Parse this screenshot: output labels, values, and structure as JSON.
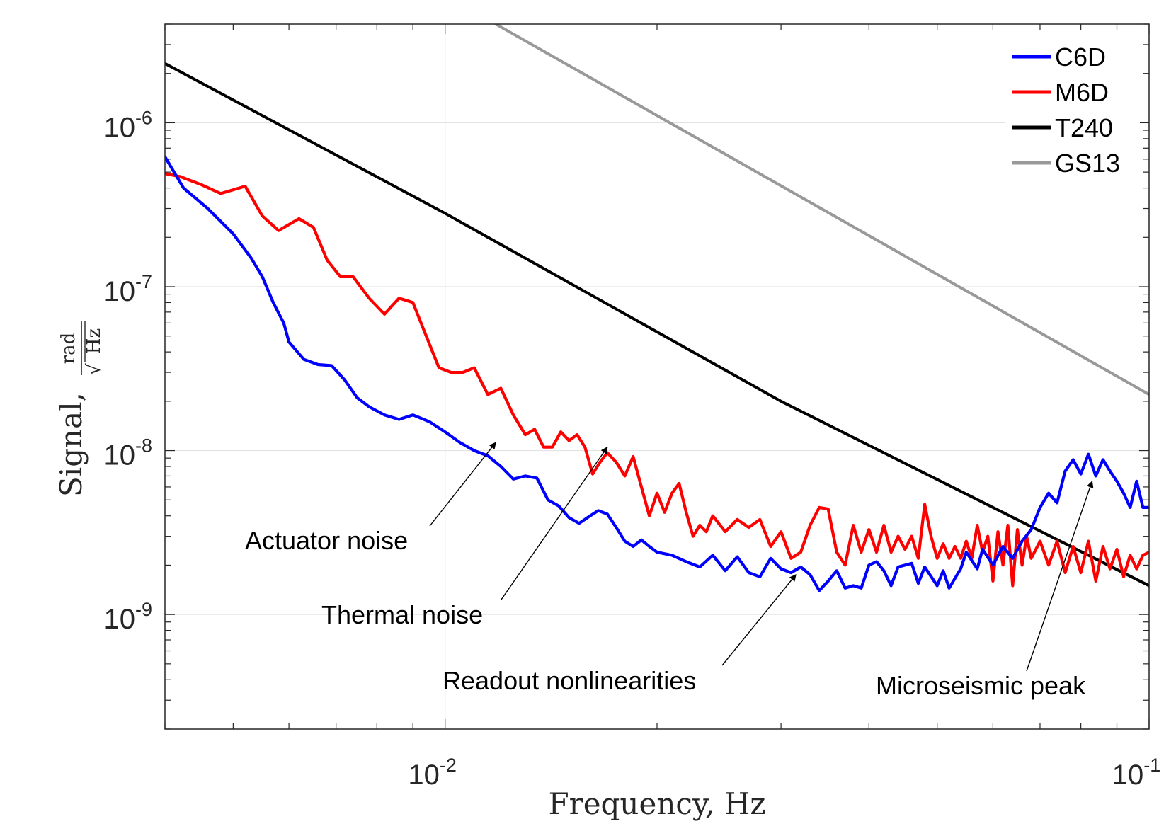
{
  "chart_data": {
    "type": "line",
    "scale": {
      "x": "log",
      "y": "log"
    },
    "xlim": [
      0.004,
      0.1
    ],
    "ylim": [
      2e-10,
      4e-06
    ],
    "x_ticks": [
      {
        "value": 0.01,
        "base": "10",
        "exp": "-2"
      },
      {
        "value": 0.1,
        "base": "10",
        "exp": "-1"
      }
    ],
    "y_ticks": [
      {
        "value": 1e-09,
        "base": "10",
        "exp": "-9"
      },
      {
        "value": 1e-08,
        "base": "10",
        "exp": "-8"
      },
      {
        "value": 1e-07,
        "base": "10",
        "exp": "-7"
      },
      {
        "value": 1e-06,
        "base": "10",
        "exp": "-6"
      }
    ],
    "xlabel": "Frequency, Hz",
    "ylabel": "Signal,",
    "yunit": {
      "numerator": "rad",
      "denominator": "Hz",
      "root": "√"
    },
    "grid": true,
    "legend_position": "top-right",
    "series": [
      {
        "name": "C6D",
        "color": "#0000ff",
        "points": [
          [
            0.004,
            6.2e-07
          ],
          [
            0.00425,
            4e-07
          ],
          [
            0.0046,
            3e-07
          ],
          [
            0.005,
            2.1e-07
          ],
          [
            0.0053,
            1.5e-07
          ],
          [
            0.0055,
            1.15e-07
          ],
          [
            0.0057,
            8e-08
          ],
          [
            0.0059,
            6e-08
          ],
          [
            0.006,
            4.6e-08
          ],
          [
            0.0063,
            3.6e-08
          ],
          [
            0.0066,
            3.35e-08
          ],
          [
            0.0069,
            3.3e-08
          ],
          [
            0.0072,
            2.7e-08
          ],
          [
            0.0075,
            2.1e-08
          ],
          [
            0.0078,
            1.85e-08
          ],
          [
            0.0082,
            1.65e-08
          ],
          [
            0.0086,
            1.55e-08
          ],
          [
            0.009,
            1.65e-08
          ],
          [
            0.0095,
            1.5e-08
          ],
          [
            0.01,
            1.3e-08
          ],
          [
            0.0105,
            1.12e-08
          ],
          [
            0.011,
            1e-08
          ],
          [
            0.0115,
            9.3e-09
          ],
          [
            0.012,
            8e-09
          ],
          [
            0.0125,
            6.7e-09
          ],
          [
            0.013,
            7e-09
          ],
          [
            0.0135,
            6.8e-09
          ],
          [
            0.014,
            5e-09
          ],
          [
            0.0145,
            4.6e-09
          ],
          [
            0.015,
            3.9e-09
          ],
          [
            0.0155,
            3.6e-09
          ],
          [
            0.016,
            3.95e-09
          ],
          [
            0.0165,
            4.3e-09
          ],
          [
            0.017,
            4.1e-09
          ],
          [
            0.0175,
            3.4e-09
          ],
          [
            0.018,
            2.8e-09
          ],
          [
            0.0185,
            2.6e-09
          ],
          [
            0.019,
            2.85e-09
          ],
          [
            0.0195,
            2.6e-09
          ],
          [
            0.02,
            2.4e-09
          ],
          [
            0.021,
            2.3e-09
          ],
          [
            0.022,
            2.1e-09
          ],
          [
            0.023,
            1.95e-09
          ],
          [
            0.024,
            2.3e-09
          ],
          [
            0.025,
            1.85e-09
          ],
          [
            0.026,
            2.25e-09
          ],
          [
            0.027,
            1.8e-09
          ],
          [
            0.028,
            1.7e-09
          ],
          [
            0.029,
            2.2e-09
          ],
          [
            0.03,
            1.9e-09
          ],
          [
            0.031,
            1.8e-09
          ],
          [
            0.032,
            1.95e-09
          ],
          [
            0.033,
            1.75e-09
          ],
          [
            0.034,
            1.4e-09
          ],
          [
            0.035,
            1.6e-09
          ],
          [
            0.036,
            1.85e-09
          ],
          [
            0.037,
            1.45e-09
          ],
          [
            0.038,
            1.5e-09
          ],
          [
            0.039,
            1.45e-09
          ],
          [
            0.04,
            2e-09
          ],
          [
            0.041,
            2.1e-09
          ],
          [
            0.042,
            1.85e-09
          ],
          [
            0.043,
            1.5e-09
          ],
          [
            0.044,
            1.95e-09
          ],
          [
            0.046,
            2.05e-09
          ],
          [
            0.047,
            1.55e-09
          ],
          [
            0.048,
            1.95e-09
          ],
          [
            0.05,
            1.5e-09
          ],
          [
            0.051,
            1.85e-09
          ],
          [
            0.052,
            1.45e-09
          ],
          [
            0.054,
            1.9e-09
          ],
          [
            0.055,
            2.4e-09
          ],
          [
            0.057,
            1.9e-09
          ],
          [
            0.058,
            2.5e-09
          ],
          [
            0.06,
            2e-09
          ],
          [
            0.062,
            2.6e-09
          ],
          [
            0.064,
            2.2e-09
          ],
          [
            0.066,
            2.8e-09
          ],
          [
            0.068,
            3.3e-09
          ],
          [
            0.07,
            4.5e-09
          ],
          [
            0.072,
            5.5e-09
          ],
          [
            0.074,
            4.8e-09
          ],
          [
            0.076,
            7.5e-09
          ],
          [
            0.078,
            8.8e-09
          ],
          [
            0.08,
            7.2e-09
          ],
          [
            0.082,
            9.5e-09
          ],
          [
            0.084,
            7e-09
          ],
          [
            0.086,
            8.8e-09
          ],
          [
            0.088,
            7.5e-09
          ],
          [
            0.09,
            6.5e-09
          ],
          [
            0.092,
            5.5e-09
          ],
          [
            0.094,
            4.5e-09
          ],
          [
            0.096,
            6.5e-09
          ],
          [
            0.098,
            4.5e-09
          ],
          [
            0.1,
            4.5e-09
          ]
        ]
      },
      {
        "name": "M6D",
        "color": "#ff0000",
        "points": [
          [
            0.004,
            4.9e-07
          ],
          [
            0.0042,
            4.7e-07
          ],
          [
            0.0045,
            4.2e-07
          ],
          [
            0.0048,
            3.7e-07
          ],
          [
            0.0052,
            4.1e-07
          ],
          [
            0.0055,
            2.7e-07
          ],
          [
            0.0058,
            2.2e-07
          ],
          [
            0.0062,
            2.6e-07
          ],
          [
            0.0065,
            2.3e-07
          ],
          [
            0.0068,
            1.45e-07
          ],
          [
            0.0071,
            1.15e-07
          ],
          [
            0.0074,
            1.15e-07
          ],
          [
            0.0078,
            8.5e-08
          ],
          [
            0.0082,
            6.8e-08
          ],
          [
            0.0086,
            8.5e-08
          ],
          [
            0.009,
            8e-08
          ],
          [
            0.0094,
            5e-08
          ],
          [
            0.0098,
            3.2e-08
          ],
          [
            0.0102,
            3e-08
          ],
          [
            0.0106,
            3e-08
          ],
          [
            0.011,
            3.2e-08
          ],
          [
            0.0115,
            2.2e-08
          ],
          [
            0.012,
            2.4e-08
          ],
          [
            0.0125,
            1.65e-08
          ],
          [
            0.013,
            1.25e-08
          ],
          [
            0.0134,
            1.35e-08
          ],
          [
            0.0138,
            1.05e-08
          ],
          [
            0.0142,
            1.05e-08
          ],
          [
            0.0146,
            1.3e-08
          ],
          [
            0.015,
            1.15e-08
          ],
          [
            0.0154,
            1.25e-08
          ],
          [
            0.0158,
            1.05e-08
          ],
          [
            0.0162,
            7.2e-09
          ],
          [
            0.0166,
            8.5e-09
          ],
          [
            0.017,
            9.7e-09
          ],
          [
            0.0175,
            8.5e-09
          ],
          [
            0.018,
            7e-09
          ],
          [
            0.0185,
            9.2e-09
          ],
          [
            0.019,
            6e-09
          ],
          [
            0.0195,
            4e-09
          ],
          [
            0.02,
            5.5e-09
          ],
          [
            0.0205,
            4.2e-09
          ],
          [
            0.021,
            5.5e-09
          ],
          [
            0.0215,
            6.3e-09
          ],
          [
            0.022,
            4.2e-09
          ],
          [
            0.0225,
            3e-09
          ],
          [
            0.023,
            3.5e-09
          ],
          [
            0.0235,
            3.2e-09
          ],
          [
            0.024,
            4e-09
          ],
          [
            0.025,
            3.2e-09
          ],
          [
            0.026,
            3.8e-09
          ],
          [
            0.027,
            3.4e-09
          ],
          [
            0.028,
            3.8e-09
          ],
          [
            0.029,
            2.6e-09
          ],
          [
            0.03,
            3.2e-09
          ],
          [
            0.031,
            2.2e-09
          ],
          [
            0.032,
            2.4e-09
          ],
          [
            0.033,
            3.5e-09
          ],
          [
            0.034,
            4.5e-09
          ],
          [
            0.035,
            4.4e-09
          ],
          [
            0.036,
            2.4e-09
          ],
          [
            0.037,
            2e-09
          ],
          [
            0.038,
            3.5e-09
          ],
          [
            0.039,
            2.4e-09
          ],
          [
            0.04,
            3.3e-09
          ],
          [
            0.041,
            2.4e-09
          ],
          [
            0.042,
            3.5e-09
          ],
          [
            0.043,
            2.4e-09
          ],
          [
            0.044,
            3e-09
          ],
          [
            0.045,
            2.5e-09
          ],
          [
            0.046,
            3e-09
          ],
          [
            0.047,
            2.2e-09
          ],
          [
            0.048,
            4.7e-09
          ],
          [
            0.049,
            3e-09
          ],
          [
            0.05,
            2.2e-09
          ],
          [
            0.051,
            2.7e-09
          ],
          [
            0.052,
            2.2e-09
          ],
          [
            0.053,
            2.6e-09
          ],
          [
            0.054,
            2.2e-09
          ],
          [
            0.055,
            2.8e-09
          ],
          [
            0.056,
            2.2e-09
          ],
          [
            0.057,
            3.5e-09
          ],
          [
            0.058,
            2.4e-09
          ],
          [
            0.059,
            3e-09
          ],
          [
            0.06,
            1.6e-09
          ],
          [
            0.061,
            3.2e-09
          ],
          [
            0.062,
            2e-09
          ],
          [
            0.063,
            3.5e-09
          ],
          [
            0.064,
            1.5e-09
          ],
          [
            0.065,
            3.3e-09
          ],
          [
            0.066,
            2e-09
          ],
          [
            0.067,
            3e-09
          ],
          [
            0.068,
            2.2e-09
          ],
          [
            0.07,
            2.8e-09
          ],
          [
            0.072,
            2e-09
          ],
          [
            0.074,
            2.8e-09
          ],
          [
            0.076,
            1.8e-09
          ],
          [
            0.078,
            2.6e-09
          ],
          [
            0.08,
            1.8e-09
          ],
          [
            0.082,
            2.8e-09
          ],
          [
            0.084,
            1.6e-09
          ],
          [
            0.086,
            2.6e-09
          ],
          [
            0.088,
            1.9e-09
          ],
          [
            0.09,
            2.5e-09
          ],
          [
            0.092,
            1.7e-09
          ],
          [
            0.094,
            2.3e-09
          ],
          [
            0.096,
            1.9e-09
          ],
          [
            0.098,
            2.3e-09
          ],
          [
            0.1,
            2.4e-09
          ]
        ]
      },
      {
        "name": "T240",
        "color": "#000000",
        "points": [
          [
            0.004,
            2.3e-06
          ],
          [
            0.01,
            2.8e-07
          ],
          [
            0.03,
            2e-08
          ],
          [
            0.1,
            1.5e-09
          ]
        ]
      },
      {
        "name": "GS13",
        "color": "#999999",
        "points": [
          [
            0.0118,
            4e-06
          ],
          [
            0.1,
            2.2e-08
          ]
        ]
      }
    ],
    "annotations": [
      {
        "text": "Actuator noise",
        "arrow_to": [
          0.0118,
          1.12e-08
        ]
      },
      {
        "text": "Thermal noise",
        "arrow_to": [
          0.017,
          1.05e-08
        ]
      },
      {
        "text": "Readout nonlinearities",
        "arrow_to": [
          0.0315,
          1.75e-09
        ]
      },
      {
        "text": "Microseismic peak",
        "arrow_to": [
          0.083,
          6.5e-09
        ]
      }
    ]
  }
}
